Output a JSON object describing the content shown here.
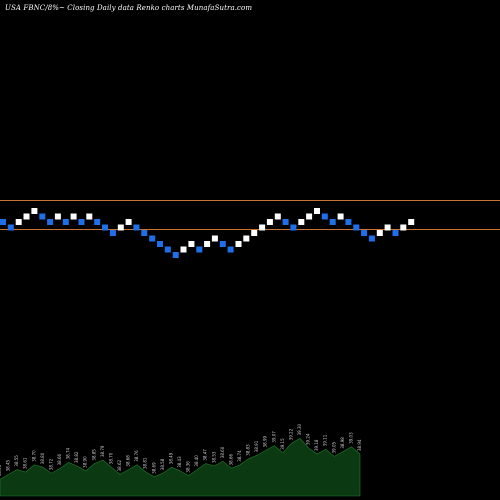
{
  "header": {
    "title": "USA FBNC/8%~  Closing Daily data  Renko  charts MunafaSutra.com"
  },
  "colors": {
    "background": "#000000",
    "up_brick": "#ffffff",
    "down_brick": "#1e6fe8",
    "resistance_line": "#c87533",
    "volume_fill": "#0b3a12",
    "volume_stroke": "#1f7a2a",
    "volume_text": "#d0d0d0"
  },
  "chart_data": {
    "type": "renko",
    "title": "USA FBNC/8%~  Closing Daily data  Renko  charts MunafaSutra.com",
    "brick_directions": [
      "down",
      "down",
      "up",
      "up",
      "up",
      "down",
      "down",
      "up",
      "down",
      "up",
      "down",
      "up",
      "down",
      "down",
      "down",
      "up",
      "up",
      "down",
      "down",
      "down",
      "down",
      "down",
      "down",
      "up",
      "up",
      "down",
      "up",
      "up",
      "down",
      "down",
      "up",
      "up",
      "up",
      "up",
      "up",
      "up",
      "down",
      "down",
      "up",
      "up",
      "up",
      "down",
      "down",
      "up",
      "down",
      "down",
      "down",
      "down",
      "up",
      "up",
      "down",
      "up",
      "up"
    ],
    "horizontal_lines": [
      {
        "label": "upper",
        "level_bricks": 3
      },
      {
        "label": "lower",
        "level_bricks": -1
      }
    ],
    "volume_labels": [
      "38.35",
      "38.45",
      "38.55",
      "38.61",
      "38.70",
      "38.80",
      "38.72",
      "38.66",
      "38.74",
      "38.82",
      "38.90",
      "38.85",
      "38.79",
      "38.70",
      "38.62",
      "38.68",
      "38.76",
      "38.81",
      "38.69",
      "38.58",
      "38.49",
      "38.43",
      "38.36",
      "38.40",
      "38.47",
      "38.53",
      "38.60",
      "38.66",
      "38.74",
      "38.83",
      "38.91",
      "38.99",
      "39.07",
      "39.15",
      "39.22",
      "39.30",
      "39.24",
      "39.18",
      "39.11",
      "39.05",
      "38.98",
      "39.03",
      "38.94"
    ],
    "volume_values": [
      14,
      18,
      22,
      20,
      26,
      24,
      19,
      23,
      28,
      25,
      21,
      27,
      30,
      24,
      18,
      22,
      26,
      20,
      16,
      19,
      24,
      21,
      17,
      22,
      27,
      25,
      29,
      23,
      26,
      31,
      34,
      38,
      42,
      36,
      44,
      48,
      40,
      35,
      39,
      33,
      37,
      41,
      35
    ]
  }
}
